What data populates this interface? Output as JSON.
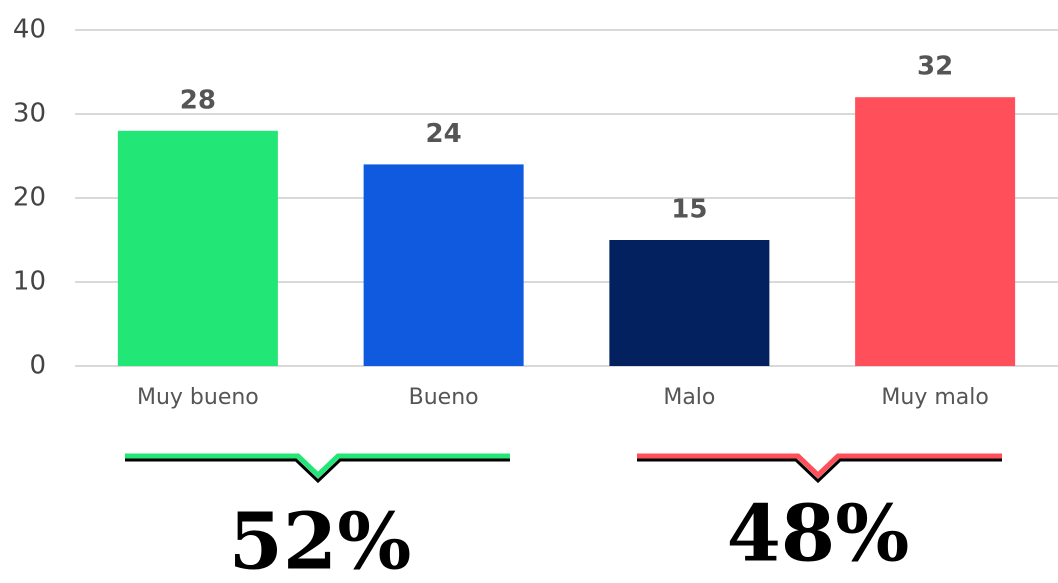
{
  "chart_data": {
    "type": "bar",
    "categories": [
      "Muy bueno",
      "Bueno",
      "Malo",
      "Muy malo"
    ],
    "values": [
      28,
      24,
      15,
      32
    ],
    "colors": [
      "#22e676",
      "#0f5ade",
      "#03215e",
      "#ff4f5a"
    ],
    "ylim": [
      0,
      40
    ],
    "yticks": [
      0,
      10,
      20,
      30,
      40
    ],
    "grid": true,
    "annotations": [
      {
        "text": "52%",
        "color": "#22e676"
      },
      {
        "text": "48%",
        "color": "#ff4f5a"
      }
    ]
  }
}
